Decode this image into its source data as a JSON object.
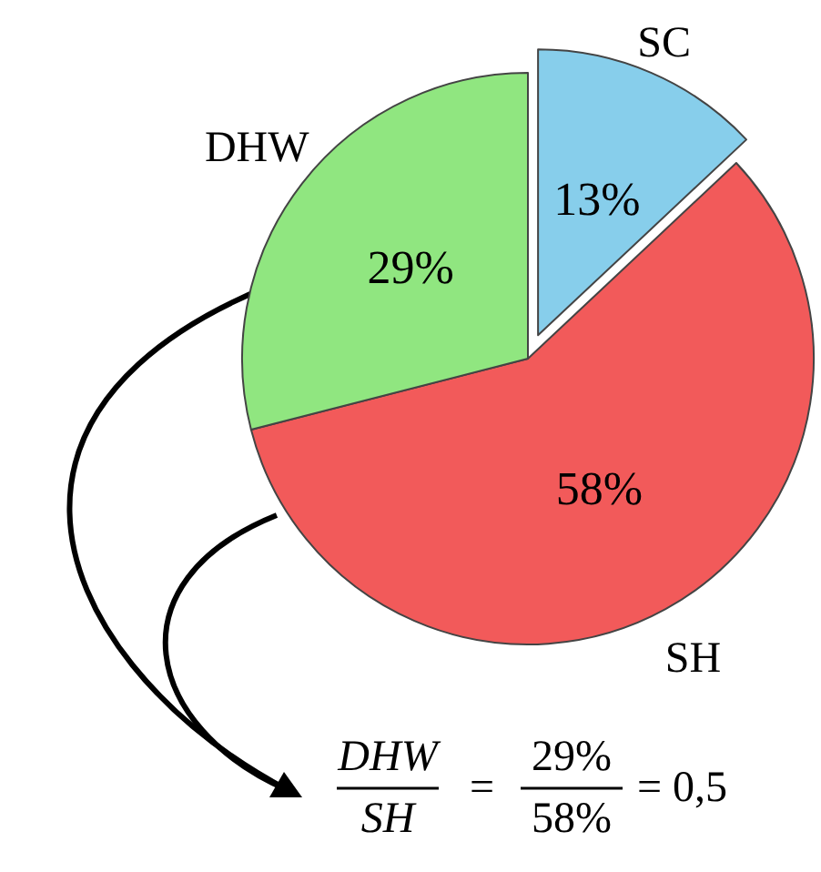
{
  "chart_data": {
    "type": "pie",
    "categories": [
      "SC",
      "SH",
      "DHW"
    ],
    "values": [
      13,
      58,
      29
    ],
    "colors": [
      "#87ceeb",
      "#f25a5a",
      "#90e680"
    ],
    "value_labels": [
      "13%",
      "58%",
      "29%"
    ],
    "legend": false,
    "annotations": [
      "DHW",
      "SH",
      "=",
      "29%",
      "58%",
      "= 0,5"
    ]
  }
}
